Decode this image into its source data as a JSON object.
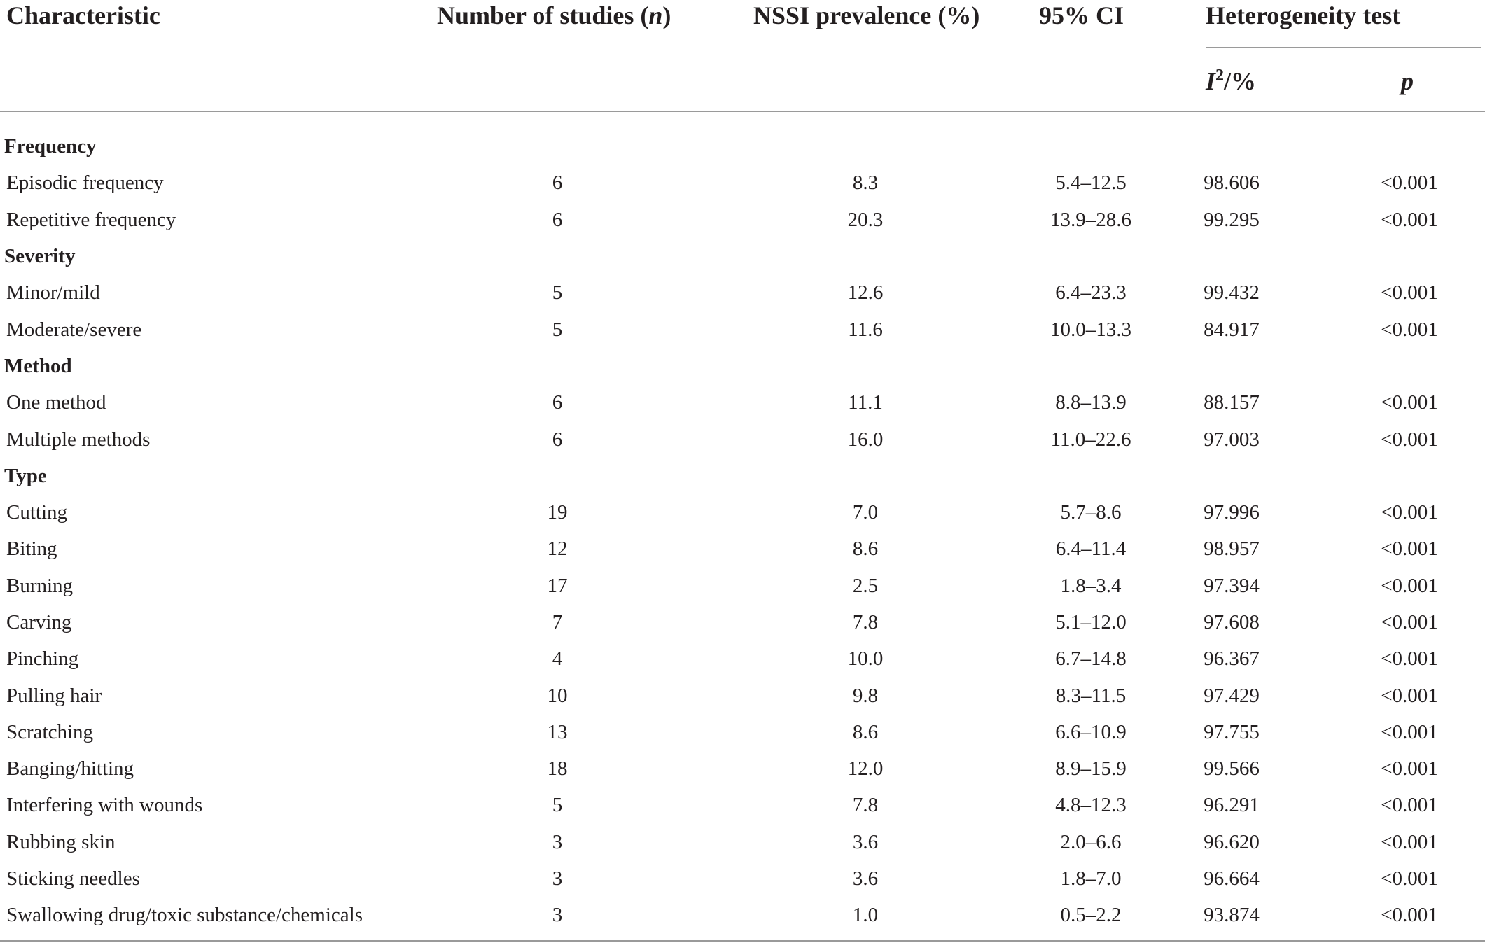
{
  "table": {
    "headers": {
      "characteristic": "Characteristic",
      "n_studies_prefix": "Number of studies (",
      "n_studies_var": "n",
      "n_studies_suffix": ")",
      "prevalence": "NSSI prevalence (%)",
      "ci": "95% CI",
      "heterogeneity": "Heterogeneity test",
      "i2_var": "I",
      "i2_sup": "2",
      "i2_suffix": "/%",
      "p_var": "p"
    },
    "rows": [
      {
        "kind": "group",
        "label": "Frequency"
      },
      {
        "kind": "data",
        "label": "Episodic frequency",
        "n": "6",
        "prevalence": "8.3",
        "ci": "5.4–12.5",
        "i2": "98.606",
        "p": "<0.001"
      },
      {
        "kind": "data",
        "label": "Repetitive frequency",
        "n": "6",
        "prevalence": "20.3",
        "ci": "13.9–28.6",
        "i2": "99.295",
        "p": "<0.001"
      },
      {
        "kind": "group",
        "label": "Severity"
      },
      {
        "kind": "data",
        "label": "Minor/mild",
        "n": "5",
        "prevalence": "12.6",
        "ci": "6.4–23.3",
        "i2": "99.432",
        "p": "<0.001"
      },
      {
        "kind": "data",
        "label": "Moderate/severe",
        "n": "5",
        "prevalence": "11.6",
        "ci": "10.0–13.3",
        "i2": "84.917",
        "p": "<0.001"
      },
      {
        "kind": "group",
        "label": "Method"
      },
      {
        "kind": "data",
        "label": "One method",
        "n": "6",
        "prevalence": "11.1",
        "ci": "8.8–13.9",
        "i2": "88.157",
        "p": "<0.001"
      },
      {
        "kind": "data",
        "label": "Multiple methods",
        "n": "6",
        "prevalence": "16.0",
        "ci": "11.0–22.6",
        "i2": "97.003",
        "p": "<0.001"
      },
      {
        "kind": "group",
        "label": "Type"
      },
      {
        "kind": "data",
        "label": "Cutting",
        "n": "19",
        "prevalence": "7.0",
        "ci": "5.7–8.6",
        "i2": "97.996",
        "p": "<0.001"
      },
      {
        "kind": "data",
        "label": "Biting",
        "n": "12",
        "prevalence": "8.6",
        "ci": "6.4–11.4",
        "i2": "98.957",
        "p": "<0.001"
      },
      {
        "kind": "data",
        "label": "Burning",
        "n": "17",
        "prevalence": "2.5",
        "ci": "1.8–3.4",
        "i2": "97.394",
        "p": "<0.001"
      },
      {
        "kind": "data",
        "label": "Carving",
        "n": "7",
        "prevalence": "7.8",
        "ci": "5.1–12.0",
        "i2": "97.608",
        "p": "<0.001"
      },
      {
        "kind": "data",
        "label": "Pinching",
        "n": "4",
        "prevalence": "10.0",
        "ci": "6.7–14.8",
        "i2": "96.367",
        "p": "<0.001"
      },
      {
        "kind": "data",
        "label": "Pulling hair",
        "n": "10",
        "prevalence": "9.8",
        "ci": "8.3–11.5",
        "i2": "97.429",
        "p": "<0.001"
      },
      {
        "kind": "data",
        "label": "Scratching",
        "n": "13",
        "prevalence": "8.6",
        "ci": "6.6–10.9",
        "i2": "97.755",
        "p": "<0.001"
      },
      {
        "kind": "data",
        "label": "Banging/hitting",
        "n": "18",
        "prevalence": "12.0",
        "ci": "8.9–15.9",
        "i2": "99.566",
        "p": "<0.001"
      },
      {
        "kind": "data",
        "label": "Interfering with wounds",
        "n": "5",
        "prevalence": "7.8",
        "ci": "4.8–12.3",
        "i2": "96.291",
        "p": "<0.001"
      },
      {
        "kind": "data",
        "label": "Rubbing skin",
        "n": "3",
        "prevalence": "3.6",
        "ci": "2.0–6.6",
        "i2": "96.620",
        "p": "<0.001"
      },
      {
        "kind": "data",
        "label": "Sticking needles",
        "n": "3",
        "prevalence": "3.6",
        "ci": "1.8–7.0",
        "i2": "96.664",
        "p": "<0.001"
      },
      {
        "kind": "data",
        "label": "Swallowing drug/toxic substance/chemicals",
        "n": "3",
        "prevalence": "1.0",
        "ci": "0.5–2.2",
        "i2": "93.874",
        "p": "<0.001"
      }
    ]
  }
}
